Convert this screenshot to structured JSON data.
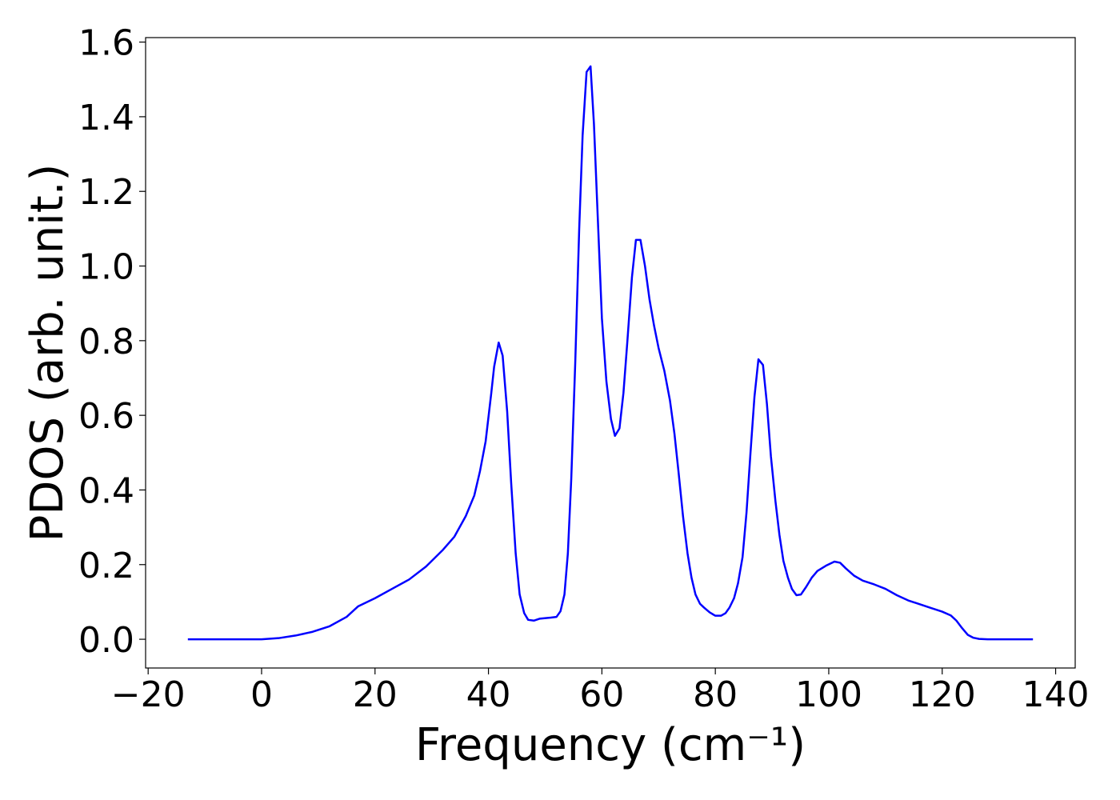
{
  "chart_data": {
    "type": "line",
    "x_label": "Frequency (cm⁻¹)",
    "y_label": "PDOS (arb. unit.)",
    "xlim": [
      -20.45,
      143.45
    ],
    "ylim": [
      -0.077,
      1.612
    ],
    "xticks": [
      {
        "value": -20,
        "label": "−20"
      },
      0,
      20,
      40,
      60,
      80,
      100,
      120,
      140
    ],
    "yticks": [
      {
        "value": 0,
        "label": "0.0"
      },
      {
        "value": 0.2,
        "label": "0.2"
      },
      {
        "value": 0.4,
        "label": "0.4"
      },
      {
        "value": 0.6,
        "label": "0.6"
      },
      {
        "value": 0.8,
        "label": "0.8"
      },
      {
        "value": 1.0,
        "label": "1.0"
      },
      {
        "value": 1.2,
        "label": "1.2"
      },
      {
        "value": 1.4,
        "label": "1.4"
      },
      {
        "value": 1.6,
        "label": "1.6"
      }
    ],
    "grid": false,
    "x": [
      -13,
      0,
      3,
      6,
      9,
      12,
      15,
      17,
      20,
      23,
      26,
      29,
      32,
      34,
      36,
      37.5,
      38.5,
      39.5,
      40.5,
      41,
      41.8,
      42.5,
      43.3,
      44,
      44.8,
      45.5,
      46.3,
      47,
      48,
      49,
      51,
      52,
      52.7,
      53.4,
      54,
      54.6,
      55.3,
      56,
      56.6,
      57.3,
      58,
      58.6,
      59.3,
      60,
      60.8,
      61.6,
      62.3,
      63.1,
      63.8,
      64.5,
      65.3,
      66,
      66.8,
      67.6,
      68.4,
      69.2,
      70,
      71,
      72,
      72.8,
      73.5,
      74.3,
      75.1,
      75.8,
      76.5,
      77.3,
      78,
      79,
      80,
      81,
      81.8,
      82.5,
      83.3,
      84,
      84.8,
      85.5,
      86.2,
      86.9,
      87.6,
      88.4,
      89.1,
      89.8,
      90.6,
      91.3,
      92,
      92.8,
      93.5,
      94.3,
      95.1,
      96,
      97,
      98,
      99.5,
      101,
      102,
      103,
      104.5,
      106,
      108,
      110,
      112,
      114,
      116,
      118,
      120,
      121.5,
      122.5,
      123.5,
      124.5,
      125.5,
      126.5,
      128,
      136
    ],
    "series": [
      {
        "color": "#0000ff",
        "values": [
          0,
          0,
          0.003,
          0.01,
          0.02,
          0.035,
          0.06,
          0.088,
          0.11,
          0.135,
          0.16,
          0.195,
          0.24,
          0.275,
          0.33,
          0.385,
          0.45,
          0.53,
          0.66,
          0.73,
          0.795,
          0.76,
          0.61,
          0.42,
          0.23,
          0.12,
          0.07,
          0.052,
          0.05,
          0.055,
          0.058,
          0.06,
          0.075,
          0.12,
          0.23,
          0.43,
          0.74,
          1.1,
          1.35,
          1.52,
          1.535,
          1.38,
          1.12,
          0.86,
          0.69,
          0.59,
          0.545,
          0.565,
          0.66,
          0.8,
          0.97,
          1.07,
          1.07,
          1.0,
          0.91,
          0.84,
          0.78,
          0.72,
          0.64,
          0.55,
          0.45,
          0.33,
          0.23,
          0.165,
          0.12,
          0.095,
          0.085,
          0.072,
          0.063,
          0.063,
          0.07,
          0.085,
          0.11,
          0.15,
          0.22,
          0.34,
          0.5,
          0.65,
          0.75,
          0.735,
          0.63,
          0.49,
          0.37,
          0.28,
          0.21,
          0.165,
          0.135,
          0.118,
          0.12,
          0.14,
          0.165,
          0.183,
          0.197,
          0.208,
          0.205,
          0.19,
          0.17,
          0.157,
          0.147,
          0.135,
          0.118,
          0.104,
          0.094,
          0.084,
          0.074,
          0.064,
          0.05,
          0.03,
          0.012,
          0.004,
          0.001,
          0,
          0
        ]
      }
    ]
  }
}
